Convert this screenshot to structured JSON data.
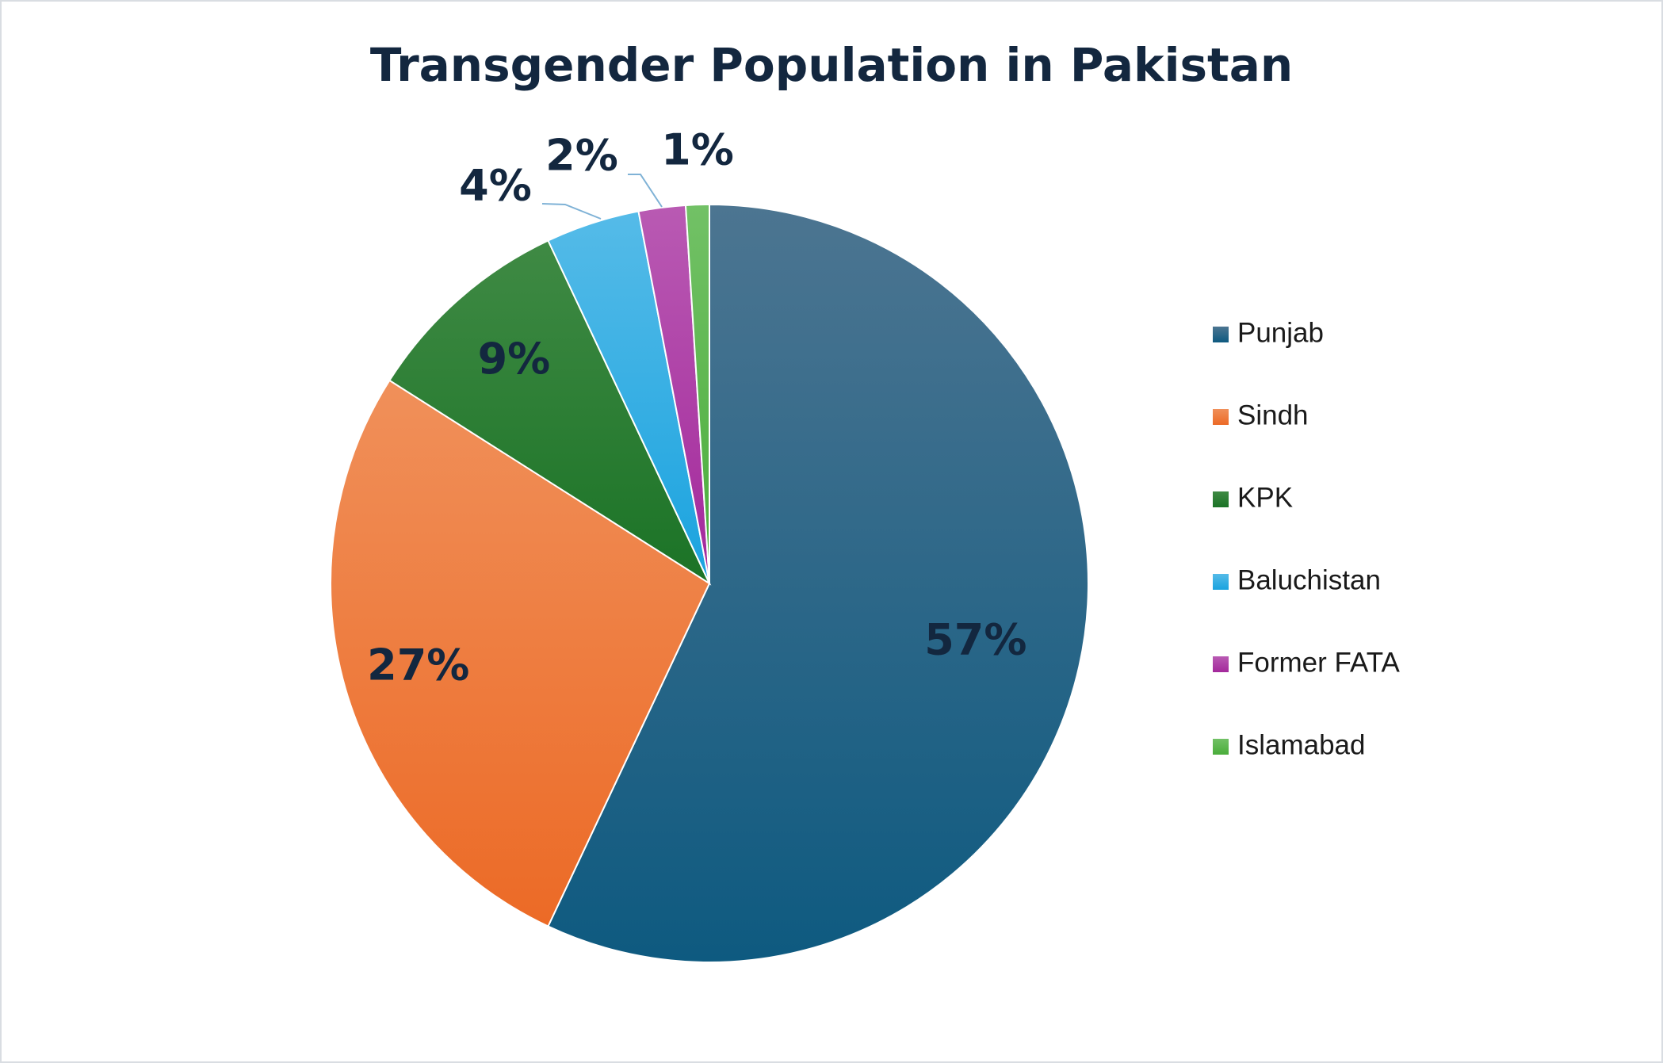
{
  "chart_data": {
    "type": "pie",
    "title": "Transgender Population in Pakistan",
    "categories": [
      "Punjab",
      "Sindh",
      "KPK",
      "Baluchistan",
      "Former FATA",
      "Islamabad"
    ],
    "values": [
      57,
      27,
      9,
      4,
      2,
      1
    ],
    "labels": [
      "57%",
      "27%",
      "9%",
      "4%",
      "2%",
      "1%"
    ],
    "colors": [
      "#0e5a80",
      "#ec6a26",
      "#1b7326",
      "#1aa3df",
      "#a3289b",
      "#4aad3a"
    ],
    "colors_light": [
      "#4c7591",
      "#f0905a",
      "#3f8a44",
      "#55bbe8",
      "#b95ab3",
      "#72c166"
    ],
    "legend_position": "right"
  }
}
